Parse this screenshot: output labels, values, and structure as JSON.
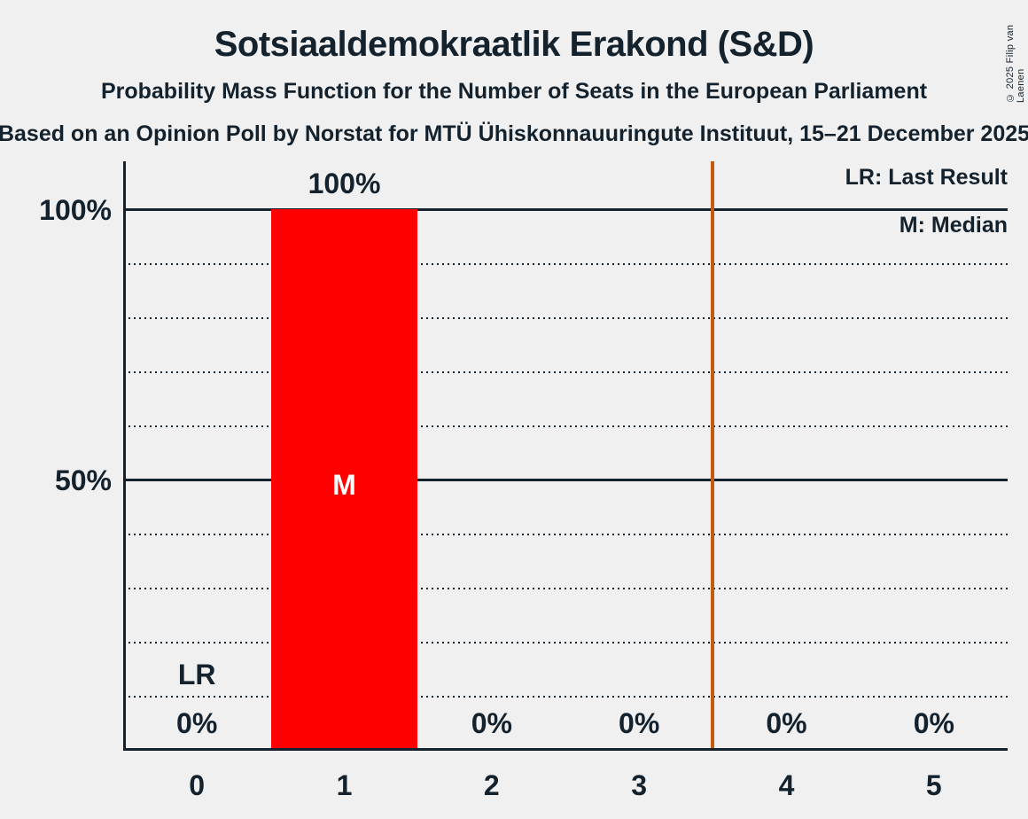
{
  "header": {
    "title": "Sotsiaaldemokraatlik Erakond (S&D)",
    "subtitle": "Probability Mass Function for the Number of Seats in the European Parliament",
    "source": "Based on an Opinion Poll by Norstat for MTÜ Ühiskonnauuringute Instituut, 15–21 December 2025",
    "copyright": "© 2025 Filip van Laenen"
  },
  "legend": {
    "items": [
      "LR: Last Result",
      "M: Median"
    ]
  },
  "colors": {
    "background": "#F0F0F0",
    "text": "#14222E",
    "bar": "#FF0000",
    "majority-line": "#C55A11",
    "bar-label": "#FFFFFF"
  },
  "chart_data": {
    "type": "bar",
    "title": "Sotsiaaldemokraatlik Erakond (S&D)",
    "categories": [
      "0",
      "1",
      "2",
      "3",
      "4",
      "5"
    ],
    "values": [
      0,
      100,
      0,
      0,
      0,
      0
    ],
    "value_labels": [
      "0%",
      "100%",
      "0%",
      "0%",
      "0%",
      "0%"
    ],
    "ylim": [
      0,
      100
    ],
    "ytick_labels": [
      "100%",
      "50%"
    ],
    "grid": {
      "solid_percent": [
        100,
        50
      ],
      "dotted_percent": [
        90,
        80,
        70,
        60,
        40,
        30,
        20,
        10
      ]
    },
    "annotations": {
      "last_result": {
        "category": "0",
        "label": "LR"
      },
      "median": {
        "category": "1",
        "label": "M"
      },
      "majority_line_x": 3.5
    },
    "legend_position": "top-right"
  }
}
